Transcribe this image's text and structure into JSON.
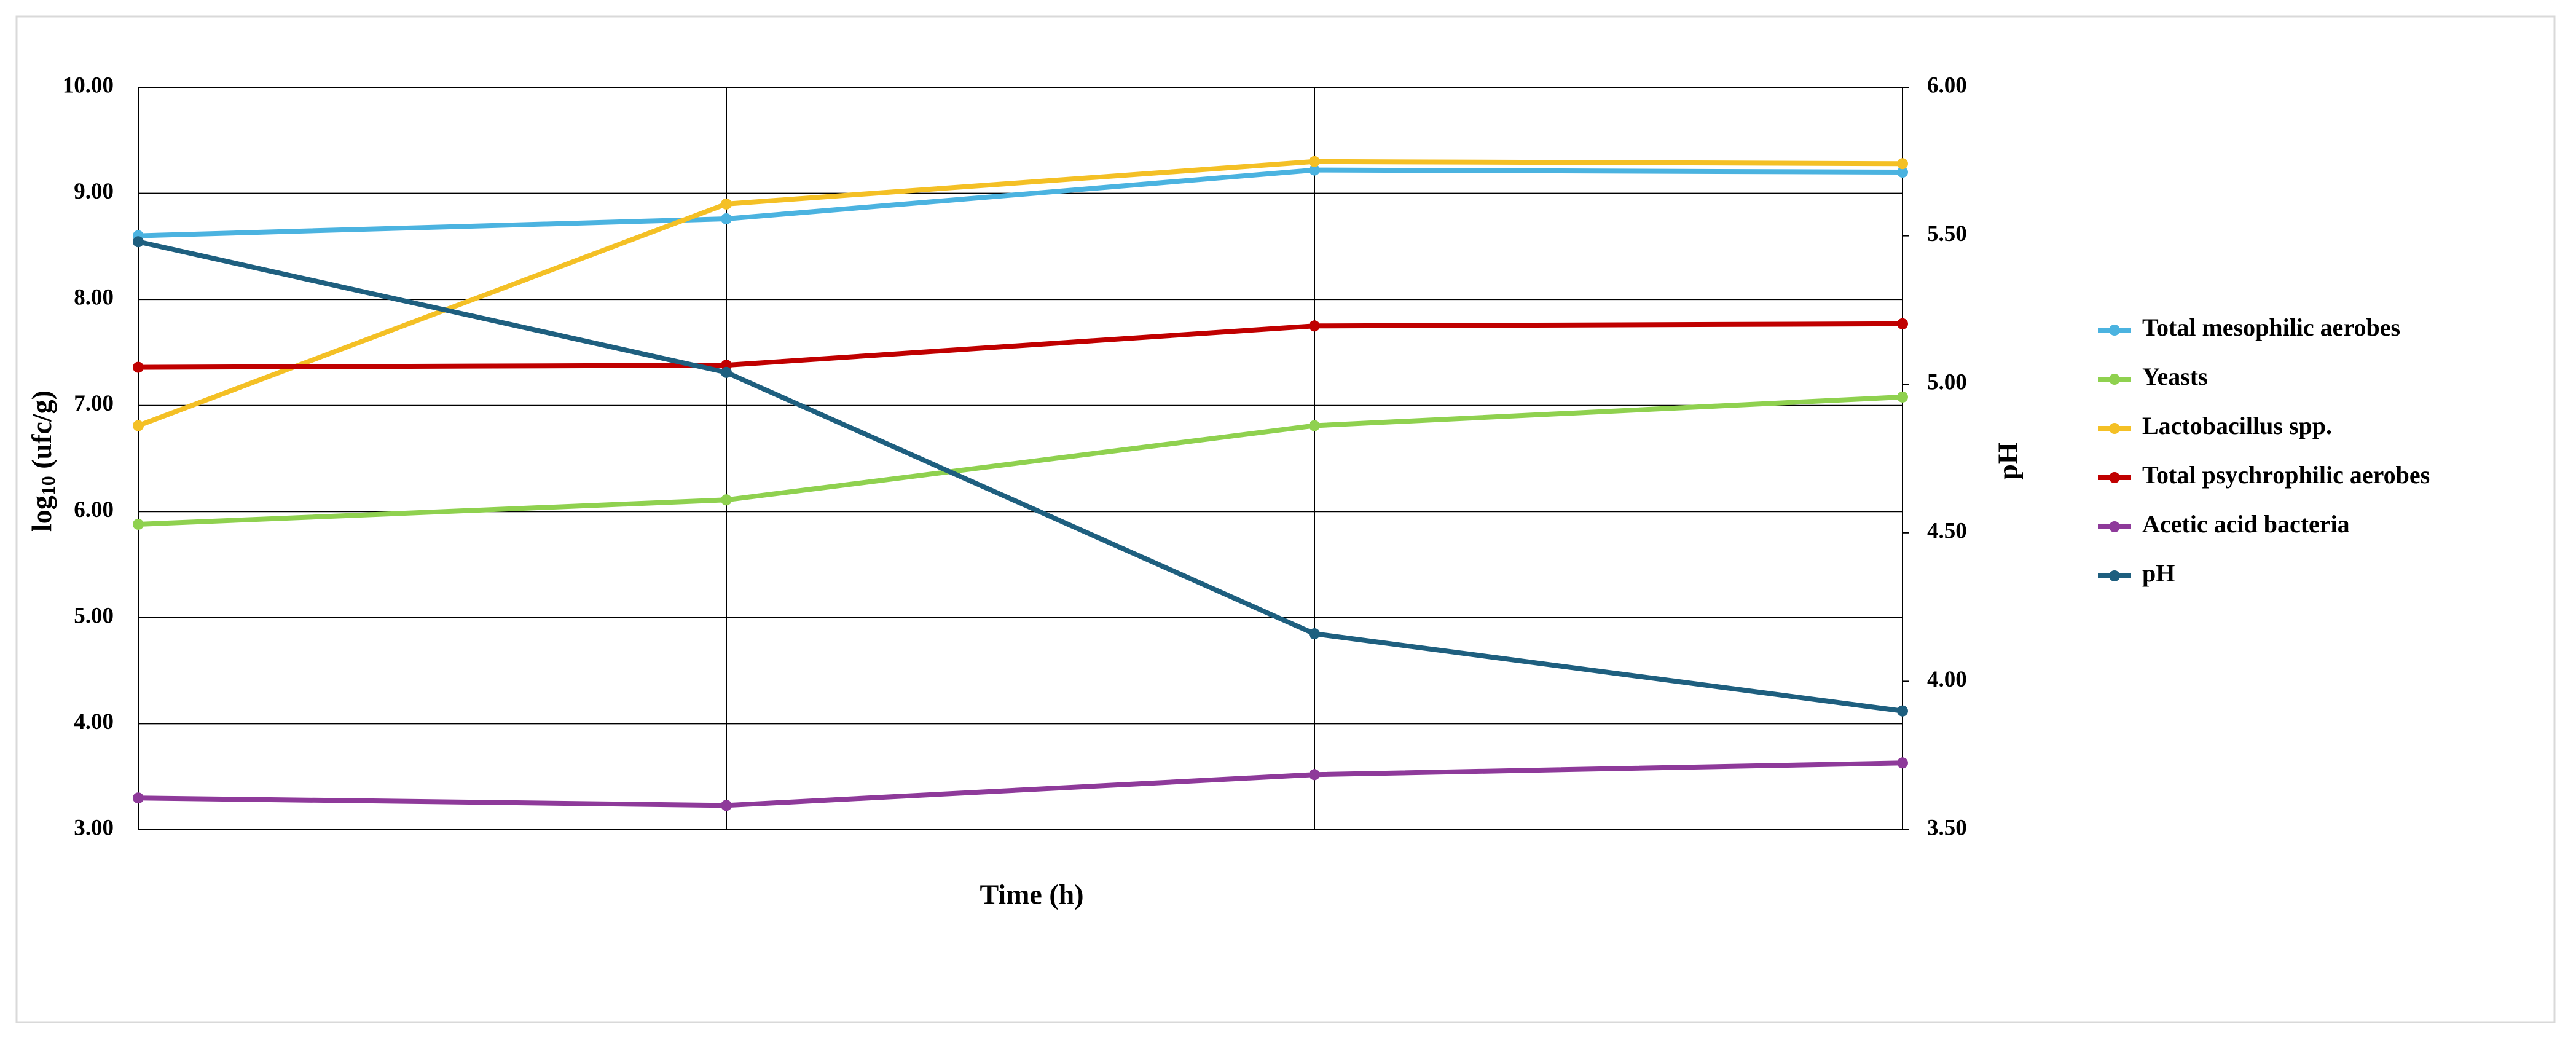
{
  "chart_data": {
    "type": "line",
    "xlabel": "Time (h)",
    "ylabel_parts": [
      "log",
      "10",
      " (ufc/g)"
    ],
    "y2label": "pH",
    "categories": [
      null,
      null,
      null,
      null
    ],
    "ylim": [
      3,
      10
    ],
    "yticks": [
      {
        "value": 3,
        "label": "3.00"
      },
      {
        "value": 4,
        "label": "4.00"
      },
      {
        "value": 5,
        "label": "5.00"
      },
      {
        "value": 6,
        "label": "6.00"
      },
      {
        "value": 7,
        "label": "7.00"
      },
      {
        "value": 8,
        "label": "8.00"
      },
      {
        "value": 9,
        "label": "9.00"
      },
      {
        "value": 10,
        "label": "10.00"
      }
    ],
    "y2lim": [
      3.5,
      6
    ],
    "y2ticks": [
      {
        "value": 3.5,
        "label": "3.50"
      },
      {
        "value": 4,
        "label": "4.00"
      },
      {
        "value": 4.5,
        "label": "4.50"
      },
      {
        "value": 5,
        "label": "5.00"
      },
      {
        "value": 5.5,
        "label": "5.50"
      },
      {
        "value": 6,
        "label": "6.00"
      }
    ],
    "grid": true,
    "legend": "right",
    "series": [
      {
        "name": "Total mesophilic aerobes",
        "color": "#4bb3e0",
        "values": [
          8.6,
          8.76,
          9.22,
          9.2
        ]
      },
      {
        "name": "Yeasts",
        "color": "#8fd14f",
        "values": [
          5.88,
          6.11,
          6.81,
          7.08
        ]
      },
      {
        "name": "Lactobacillus spp.",
        "color": "#f4c025",
        "values": [
          6.81,
          8.9,
          9.3,
          9.28
        ]
      },
      {
        "name": "Total psychrophilic aerobes",
        "color": "#c00000",
        "values": [
          7.36,
          7.38,
          7.75,
          7.77
        ]
      },
      {
        "name": "Acetic acid bacteria",
        "color": "#8e3a9a",
        "values": [
          3.3,
          3.23,
          3.52,
          3.63
        ]
      },
      {
        "name": "pH",
        "color": "#1e5f7f",
        "axis": "y2",
        "values": [
          5.48,
          5.04,
          4.16,
          3.9
        ]
      }
    ]
  }
}
